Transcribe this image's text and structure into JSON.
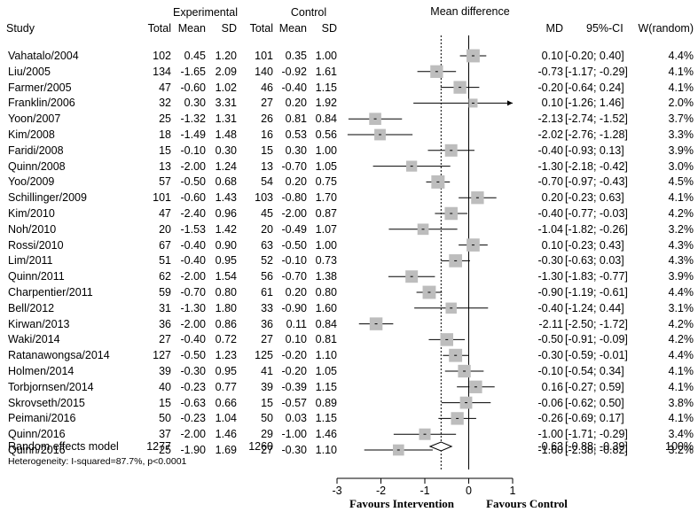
{
  "chart_data": {
    "type": "forest",
    "header": {
      "study": "Study",
      "experimental": "Experimental",
      "control": "Control",
      "total_e": "Total",
      "mean_e": "Mean",
      "sd_e": "SD",
      "total_c": "Total",
      "mean_c": "Mean",
      "sd_c": "SD",
      "plot_title": "Mean difference",
      "md": "MD",
      "ci": "95%-CI",
      "weight": "W(random)"
    },
    "studies": [
      {
        "study": "Vahatalo/2004",
        "ne": "102",
        "me": "0.45",
        "sde": "1.20",
        "nc": "101",
        "mc": "0.35",
        "sdc": "1.00",
        "md": 0.1,
        "lo": -0.2,
        "hi": 0.4,
        "w": 4.4,
        "md_text": "0.10",
        "ci_text": "[-0.20; 0.40]",
        "w_text": "4.4%"
      },
      {
        "study": "Liu/2005",
        "ne": "134",
        "me": "-1.65",
        "sde": "2.09",
        "nc": "140",
        "mc": "-0.92",
        "sdc": "1.61",
        "md": -0.73,
        "lo": -1.17,
        "hi": -0.29,
        "w": 4.1,
        "md_text": "-0.73",
        "ci_text": "[-1.17; -0.29]",
        "w_text": "4.1%"
      },
      {
        "study": "Farmer/2005",
        "ne": "47",
        "me": "-0.60",
        "sde": "1.02",
        "nc": "46",
        "mc": "-0.40",
        "sdc": "1.15",
        "md": -0.2,
        "lo": -0.64,
        "hi": 0.24,
        "w": 4.1,
        "md_text": "-0.20",
        "ci_text": "[-0.64; 0.24]",
        "w_text": "4.1%"
      },
      {
        "study": "Franklin/2006",
        "ne": "32",
        "me": "0.30",
        "sde": "3.31",
        "nc": "27",
        "mc": "0.20",
        "sdc": "1.92",
        "md": 0.1,
        "lo": -1.26,
        "hi": 1.46,
        "w": 2.0,
        "md_text": "0.10",
        "ci_text": "[-1.26; 1.46]",
        "w_text": "2.0%"
      },
      {
        "study": "Yoon/2007",
        "ne": "25",
        "me": "-1.32",
        "sde": "1.31",
        "nc": "26",
        "mc": "0.81",
        "sdc": "0.84",
        "md": -2.13,
        "lo": -2.74,
        "hi": -1.52,
        "w": 3.7,
        "md_text": "-2.13",
        "ci_text": "[-2.74; -1.52]",
        "w_text": "3.7%"
      },
      {
        "study": "Kim/2008",
        "ne": "18",
        "me": "-1.49",
        "sde": "1.48",
        "nc": "16",
        "mc": "0.53",
        "sdc": "0.56",
        "md": -2.02,
        "lo": -2.76,
        "hi": -1.28,
        "w": 3.3,
        "md_text": "-2.02",
        "ci_text": "[-2.76; -1.28]",
        "w_text": "3.3%"
      },
      {
        "study": "Faridi/2008",
        "ne": "15",
        "me": "-0.10",
        "sde": "0.30",
        "nc": "15",
        "mc": "0.30",
        "sdc": "1.00",
        "md": -0.4,
        "lo": -0.93,
        "hi": 0.13,
        "w": 3.9,
        "md_text": "-0.40",
        "ci_text": "[-0.93; 0.13]",
        "w_text": "3.9%"
      },
      {
        "study": "Quinn/2008",
        "ne": "13",
        "me": "-2.00",
        "sde": "1.24",
        "nc": "13",
        "mc": "-0.70",
        "sdc": "1.05",
        "md": -1.3,
        "lo": -2.18,
        "hi": -0.42,
        "w": 3.0,
        "md_text": "-1.30",
        "ci_text": "[-2.18; -0.42]",
        "w_text": "3.0%"
      },
      {
        "study": "Yoo/2009",
        "ne": "57",
        "me": "-0.50",
        "sde": "0.68",
        "nc": "54",
        "mc": "0.20",
        "sdc": "0.75",
        "md": -0.7,
        "lo": -0.97,
        "hi": -0.43,
        "w": 4.5,
        "md_text": "-0.70",
        "ci_text": "[-0.97; -0.43]",
        "w_text": "4.5%"
      },
      {
        "study": "Schillinger/2009",
        "ne": "101",
        "me": "-0.60",
        "sde": "1.43",
        "nc": "103",
        "mc": "-0.80",
        "sdc": "1.70",
        "md": 0.2,
        "lo": -0.23,
        "hi": 0.63,
        "w": 4.1,
        "md_text": "0.20",
        "ci_text": "[-0.23; 0.63]",
        "w_text": "4.1%"
      },
      {
        "study": "Kim/2010",
        "ne": "47",
        "me": "-2.40",
        "sde": "0.96",
        "nc": "45",
        "mc": "-2.00",
        "sdc": "0.87",
        "md": -0.4,
        "lo": -0.77,
        "hi": -0.03,
        "w": 4.2,
        "md_text": "-0.40",
        "ci_text": "[-0.77; -0.03]",
        "w_text": "4.2%"
      },
      {
        "study": "Noh/2010",
        "ne": "20",
        "me": "-1.53",
        "sde": "1.42",
        "nc": "20",
        "mc": "-0.49",
        "sdc": "1.07",
        "md": -1.04,
        "lo": -1.82,
        "hi": -0.26,
        "w": 3.2,
        "md_text": "-1.04",
        "ci_text": "[-1.82; -0.26]",
        "w_text": "3.2%"
      },
      {
        "study": "Rossi/2010",
        "ne": "67",
        "me": "-0.40",
        "sde": "0.90",
        "nc": "63",
        "mc": "-0.50",
        "sdc": "1.00",
        "md": 0.1,
        "lo": -0.23,
        "hi": 0.43,
        "w": 4.3,
        "md_text": "0.10",
        "ci_text": "[-0.23; 0.43]",
        "w_text": "4.3%"
      },
      {
        "study": "Lim/2011",
        "ne": "51",
        "me": "-0.40",
        "sde": "0.95",
        "nc": "52",
        "mc": "-0.10",
        "sdc": "0.73",
        "md": -0.3,
        "lo": -0.63,
        "hi": 0.03,
        "w": 4.3,
        "md_text": "-0.30",
        "ci_text": "[-0.63; 0.03]",
        "w_text": "4.3%"
      },
      {
        "study": "Quinn/2011",
        "ne": "62",
        "me": "-2.00",
        "sde": "1.54",
        "nc": "56",
        "mc": "-0.70",
        "sdc": "1.38",
        "md": -1.3,
        "lo": -1.83,
        "hi": -0.77,
        "w": 3.9,
        "md_text": "-1.30",
        "ci_text": "[-1.83; -0.77]",
        "w_text": "3.9%"
      },
      {
        "study": "Charpentier/2011",
        "ne": "59",
        "me": "-0.70",
        "sde": "0.80",
        "nc": "61",
        "mc": "0.20",
        "sdc": "0.80",
        "md": -0.9,
        "lo": -1.19,
        "hi": -0.61,
        "w": 4.4,
        "md_text": "-0.90",
        "ci_text": "[-1.19; -0.61]",
        "w_text": "4.4%"
      },
      {
        "study": "Bell/2012",
        "ne": "31",
        "me": "-1.30",
        "sde": "1.80",
        "nc": "33",
        "mc": "-0.90",
        "sdc": "1.60",
        "md": -0.4,
        "lo": -1.24,
        "hi": 0.44,
        "w": 3.1,
        "md_text": "-0.40",
        "ci_text": "[-1.24; 0.44]",
        "w_text": "3.1%"
      },
      {
        "study": "Kirwan/2013",
        "ne": "36",
        "me": "-2.00",
        "sde": "0.86",
        "nc": "36",
        "mc": "0.11",
        "sdc": "0.84",
        "md": -2.11,
        "lo": -2.5,
        "hi": -1.72,
        "w": 4.2,
        "md_text": "-2.11",
        "ci_text": "[-2.50; -1.72]",
        "w_text": "4.2%"
      },
      {
        "study": "Waki/2014",
        "ne": "27",
        "me": "-0.40",
        "sde": "0.72",
        "nc": "27",
        "mc": "0.10",
        "sdc": "0.81",
        "md": -0.5,
        "lo": -0.91,
        "hi": -0.09,
        "w": 4.2,
        "md_text": "-0.50",
        "ci_text": "[-0.91; -0.09]",
        "w_text": "4.2%"
      },
      {
        "study": "Ratanawongsa/2014",
        "ne": "127",
        "me": "-0.50",
        "sde": "1.23",
        "nc": "125",
        "mc": "-0.20",
        "sdc": "1.10",
        "md": -0.3,
        "lo": -0.59,
        "hi": -0.01,
        "w": 4.4,
        "md_text": "-0.30",
        "ci_text": "[-0.59; -0.01]",
        "w_text": "4.4%"
      },
      {
        "study": "Holmen/2014",
        "ne": "39",
        "me": "-0.30",
        "sde": "0.95",
        "nc": "41",
        "mc": "-0.20",
        "sdc": "1.05",
        "md": -0.1,
        "lo": -0.54,
        "hi": 0.34,
        "w": 4.1,
        "md_text": "-0.10",
        "ci_text": "[-0.54; 0.34]",
        "w_text": "4.1%"
      },
      {
        "study": "Torbjornsen/2014",
        "ne": "40",
        "me": "-0.23",
        "sde": "0.77",
        "nc": "39",
        "mc": "-0.39",
        "sdc": "1.15",
        "md": 0.16,
        "lo": -0.27,
        "hi": 0.59,
        "w": 4.1,
        "md_text": "0.16",
        "ci_text": "[-0.27; 0.59]",
        "w_text": "4.1%"
      },
      {
        "study": "Skrovseth/2015",
        "ne": "15",
        "me": "-0.63",
        "sde": "0.66",
        "nc": "15",
        "mc": "-0.57",
        "sdc": "0.89",
        "md": -0.06,
        "lo": -0.62,
        "hi": 0.5,
        "w": 3.8,
        "md_text": "-0.06",
        "ci_text": "[-0.62; 0.50]",
        "w_text": "3.8%"
      },
      {
        "study": "Peimani/2016",
        "ne": "50",
        "me": "-0.23",
        "sde": "1.04",
        "nc": "50",
        "mc": "0.03",
        "sdc": "1.15",
        "md": -0.26,
        "lo": -0.69,
        "hi": 0.17,
        "w": 4.1,
        "md_text": "-0.26",
        "ci_text": "[-0.69; 0.17]",
        "w_text": "4.1%"
      },
      {
        "study": "Quinn/2016",
        "ne": "37",
        "me": "-2.00",
        "sde": "1.46",
        "nc": "29",
        "mc": "-1.00",
        "sdc": "1.46",
        "md": -1.0,
        "lo": -1.71,
        "hi": -0.29,
        "w": 3.4,
        "md_text": "-1.00",
        "ci_text": "[-1.71; -0.29]",
        "w_text": "3.4%"
      },
      {
        "study": "Quinn/2016",
        "ne": "25",
        "me": "-1.90",
        "sde": "1.69",
        "nc": "27",
        "mc": "-0.30",
        "sdc": "1.10",
        "md": -1.6,
        "lo": -2.38,
        "hi": -0.82,
        "w": 3.2,
        "md_text": "-1.60",
        "ci_text": "[-2.38; -0.82]",
        "w_text": "3.2%"
      }
    ],
    "pooled": {
      "label": "Random effects model",
      "ne": "1277",
      "nc": "1260",
      "md": -0.63,
      "lo": -0.88,
      "hi": -0.39,
      "md_text": "-0.63",
      "ci_text": "[-0.88; -0.39]",
      "w_text": "100%"
    },
    "heterogeneity": "Heterogeneity: I-squared=87.7%, p<0.0001",
    "xlim": [
      -3,
      1
    ],
    "xticks": [
      -3,
      -2,
      -1,
      0,
      1
    ],
    "xtick_labels": [
      "-3",
      "-2",
      "-1",
      "0",
      "1"
    ],
    "xlabel_left": "Favours Intervention",
    "xlabel_right": "Favours Control",
    "colors": {
      "square": "#bdbdbd",
      "line": "#000000"
    }
  }
}
